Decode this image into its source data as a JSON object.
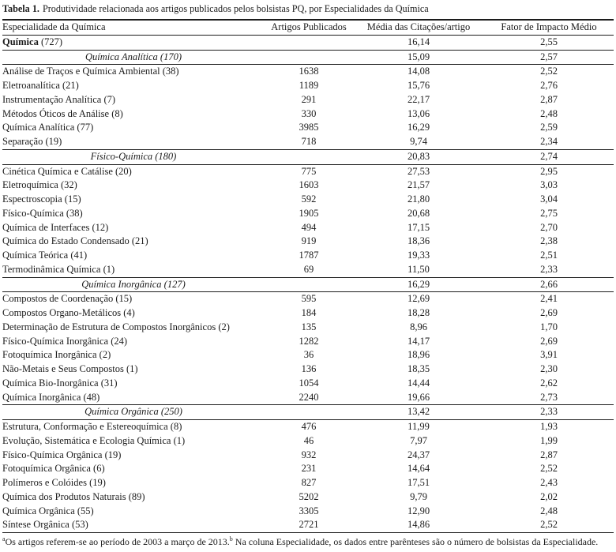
{
  "caption": {
    "label": "Tabela 1.",
    "text": "Produtividade relacionada aos artigos publicados pelos bolsistas PQ, por Especialidades da Química"
  },
  "table": {
    "columns": [
      "Especialidade da Química",
      "Artigos Publicados",
      "Média das Citações/artigo",
      "Fator de Impacto Médio"
    ],
    "rows": [
      {
        "type": "group",
        "name": "Química",
        "n": "727",
        "artigos": "",
        "citacoes": "16,14",
        "impacto": "2,55"
      },
      {
        "type": "section",
        "name": "Química Analítica",
        "n": "170",
        "artigos": "",
        "citacoes": "15,09",
        "impacto": "2,57"
      },
      {
        "type": "item",
        "name": "Análise de Traços e Química Ambiental",
        "n": "38",
        "artigos": "1638",
        "citacoes": "14,08",
        "impacto": "2,52"
      },
      {
        "type": "item",
        "name": "Eletroanalítica",
        "n": "21",
        "artigos": "1189",
        "citacoes": "15,76",
        "impacto": "2,76"
      },
      {
        "type": "item",
        "name": "Instrumentação Analítica",
        "n": "7",
        "artigos": "291",
        "citacoes": "22,17",
        "impacto": "2,87"
      },
      {
        "type": "item",
        "name": "Métodos Óticos de Análise",
        "n": "8",
        "artigos": "330",
        "citacoes": "13,06",
        "impacto": "2,48"
      },
      {
        "type": "item",
        "name": "Química Analítica",
        "n": "77",
        "artigos": "3985",
        "citacoes": "16,29",
        "impacto": "2,59"
      },
      {
        "type": "item",
        "name": "Separação",
        "n": "19",
        "artigos": "718",
        "citacoes": "9,74",
        "impacto": "2,34"
      },
      {
        "type": "section",
        "name": "Físico-Química",
        "n": "180",
        "artigos": "",
        "citacoes": "20,83",
        "impacto": "2,74"
      },
      {
        "type": "item",
        "name": "Cinética Química e Catálise",
        "n": "20",
        "artigos": "775",
        "citacoes": "27,53",
        "impacto": "2,95"
      },
      {
        "type": "item",
        "name": "Eletroquímica",
        "n": "32",
        "artigos": "1603",
        "citacoes": "21,57",
        "impacto": "3,03"
      },
      {
        "type": "item",
        "name": "Espectroscopia",
        "n": "15",
        "artigos": "592",
        "citacoes": "21,80",
        "impacto": "3,04"
      },
      {
        "type": "item",
        "name": "Físico-Química",
        "n": "38",
        "artigos": "1905",
        "citacoes": "20,68",
        "impacto": "2,75"
      },
      {
        "type": "item",
        "name": "Química de Interfaces",
        "n": "12",
        "artigos": "494",
        "citacoes": "17,15",
        "impacto": "2,70"
      },
      {
        "type": "item",
        "name": "Química do Estado Condensado",
        "n": "21",
        "artigos": "919",
        "citacoes": "18,36",
        "impacto": "2,38"
      },
      {
        "type": "item",
        "name": "Química Teórica",
        "n": "41",
        "artigos": "1787",
        "citacoes": "19,33",
        "impacto": "2,51"
      },
      {
        "type": "item",
        "name": "Termodinâmica Química",
        "n": "1",
        "artigos": "69",
        "citacoes": "11,50",
        "impacto": "2,33"
      },
      {
        "type": "section",
        "name": "Química Inorgânica",
        "n": "127",
        "artigos": "",
        "citacoes": "16,29",
        "impacto": "2,66"
      },
      {
        "type": "item",
        "name": "Compostos de Coordenação",
        "n": "15",
        "artigos": "595",
        "citacoes": "12,69",
        "impacto": "2,41"
      },
      {
        "type": "item",
        "name": "Compostos Organo-Metálicos",
        "n": "4",
        "artigos": "184",
        "citacoes": "18,28",
        "impacto": "2,69"
      },
      {
        "type": "item",
        "name": "Determinação de Estrutura de Compostos Inorgânicos",
        "n": "2",
        "artigos": "135",
        "citacoes": "8,96",
        "impacto": "1,70"
      },
      {
        "type": "item",
        "name": "Físico-Química Inorgânica",
        "n": "24",
        "artigos": "1282",
        "citacoes": "14,17",
        "impacto": "2,69"
      },
      {
        "type": "item",
        "name": "Fotoquímica Inorgânica",
        "n": "2",
        "artigos": "36",
        "citacoes": "18,96",
        "impacto": "3,91"
      },
      {
        "type": "item",
        "name": "Não-Metais e Seus Compostos",
        "n": "1",
        "artigos": "136",
        "citacoes": "18,35",
        "impacto": "2,30"
      },
      {
        "type": "item",
        "name": "Química Bio-Inorgânica",
        "n": "31",
        "artigos": "1054",
        "citacoes": "14,44",
        "impacto": "2,62"
      },
      {
        "type": "item",
        "name": "Química Inorgânica",
        "n": "48",
        "artigos": "2240",
        "citacoes": "19,66",
        "impacto": "2,73"
      },
      {
        "type": "section",
        "name": "Química Orgânica",
        "n": "250",
        "artigos": "",
        "citacoes": "13,42",
        "impacto": "2,33"
      },
      {
        "type": "item",
        "name": "Estrutura, Conformação e Estereoquímica",
        "n": "8",
        "artigos": "476",
        "citacoes": "11,99",
        "impacto": "1,93"
      },
      {
        "type": "item",
        "name": "Evolução, Sistemática e Ecologia Química",
        "n": "1",
        "artigos": "46",
        "citacoes": "7,97",
        "impacto": "1,99"
      },
      {
        "type": "item",
        "name": "Físico-Química Orgânica",
        "n": "19",
        "artigos": "932",
        "citacoes": "24,37",
        "impacto": "2,87"
      },
      {
        "type": "item",
        "name": "Fotoquímica Orgânica",
        "n": "6",
        "artigos": "231",
        "citacoes": "14,64",
        "impacto": "2,52"
      },
      {
        "type": "item",
        "name": "Polímeros e Colóides",
        "n": "19",
        "artigos": "827",
        "citacoes": "17,51",
        "impacto": "2,43"
      },
      {
        "type": "item",
        "name": "Química dos Produtos Naturais",
        "n": "89",
        "artigos": "5202",
        "citacoes": "9,79",
        "impacto": "2,02"
      },
      {
        "type": "item",
        "name": "Química Orgânica",
        "n": "55",
        "artigos": "3305",
        "citacoes": "12,90",
        "impacto": "2,48"
      },
      {
        "type": "item",
        "name": "Síntese Orgânica",
        "n": "53",
        "artigos": "2721",
        "citacoes": "14,86",
        "impacto": "2,52"
      }
    ]
  },
  "footnote": {
    "parts": [
      {
        "sup": "a"
      },
      {
        "text": "Os artigos referem-se ao período de 2003 a março de 2013."
      },
      {
        "sup": "b"
      },
      {
        "text": " Na coluna Especialidade, os dados entre parênteses são o número de bolsistas da Especialidade."
      }
    ]
  }
}
